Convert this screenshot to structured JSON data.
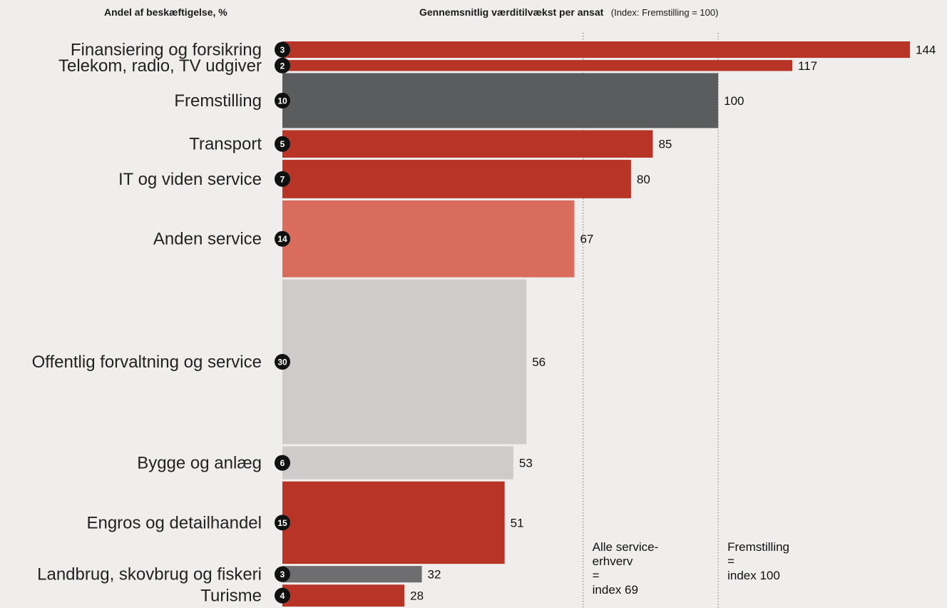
{
  "header": {
    "left_title": "Andel af beskæftigelse, %",
    "right_title": "Gennemsnitlig værditilvækst per ansat",
    "right_note": "(Index: Fremstilling = 100)"
  },
  "chart_data": {
    "type": "bar",
    "orientation": "horizontal",
    "categories": [
      "Finansiering og forsikring",
      "Telekom, radio, TV udgiver",
      "Fremstilling",
      "Transport",
      "IT og viden service",
      "Anden service",
      "Offentlig forvaltning og service",
      "Bygge og anlæg",
      "Engros og detailhandel",
      "Landbrug, skovbrug og fiskeri",
      "Turisme"
    ],
    "values": [
      144,
      117,
      100,
      85,
      80,
      67,
      56,
      53,
      51,
      32,
      28
    ],
    "employment_share": [
      3,
      2,
      10,
      5,
      7,
      14,
      30,
      6,
      15,
      3,
      4
    ],
    "colors": [
      "#b83427",
      "#b83427",
      "#5b5c5e",
      "#b83427",
      "#b83427",
      "#d96c5c",
      "#cfcbca",
      "#cfcbca",
      "#b83427",
      "#6e6e70",
      "#b83427"
    ],
    "xlim": [
      0,
      144
    ],
    "reference_lines": [
      {
        "value": 69,
        "label_lines": [
          "Alle service-",
          "erhverv",
          "=",
          "index 69"
        ]
      },
      {
        "value": 100,
        "label_lines": [
          "Fremstilling",
          "=",
          "index 100"
        ]
      }
    ],
    "bar_width_encodes": "Andel af beskæftigelse, %",
    "grid": false,
    "legend": "none"
  }
}
